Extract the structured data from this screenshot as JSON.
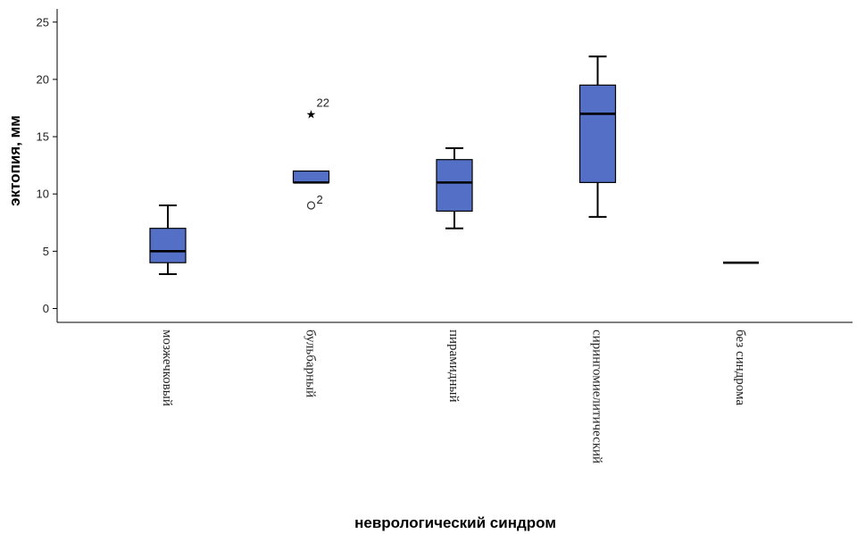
{
  "chart_data": {
    "type": "boxplot",
    "xlabel": "неврологический синдром",
    "ylabel": "эктопия, мм",
    "ylim": [
      -1,
      26
    ],
    "yticks": [
      0,
      5,
      10,
      15,
      20,
      25
    ],
    "grid": false,
    "colors": {
      "box_fill": "#5470c6",
      "stroke": "#000000"
    },
    "categories": [
      "мозжечковый",
      "бульбарный",
      "пирамидный",
      "сирингомиелитический",
      "без синдрома"
    ],
    "boxes": [
      {
        "category": "мозжечковый",
        "whisker_low": 3,
        "q1": 4,
        "median": 5,
        "q3": 7,
        "whisker_high": 9
      },
      {
        "category": "бульбарный",
        "whisker_low": 11,
        "q1": 11,
        "median": 11,
        "q3": 12,
        "whisker_high": 12
      },
      {
        "category": "пирамидный",
        "whisker_low": 7,
        "q1": 8.5,
        "median": 11,
        "q3": 13,
        "whisker_high": 14
      },
      {
        "category": "сирингомиелитический",
        "whisker_low": 8,
        "q1": 11,
        "median": 17,
        "q3": 19.5,
        "whisker_high": 22
      },
      {
        "category": "без синдрома",
        "whisker_low": 4,
        "q1": 4,
        "median": 4,
        "q3": 4,
        "whisker_high": 4
      }
    ],
    "outliers": [
      {
        "category": "бульбарный",
        "value": 9,
        "marker": "circle",
        "label": "2"
      },
      {
        "category": "бульбарный",
        "value": 17,
        "marker": "star",
        "label": "22"
      }
    ]
  }
}
